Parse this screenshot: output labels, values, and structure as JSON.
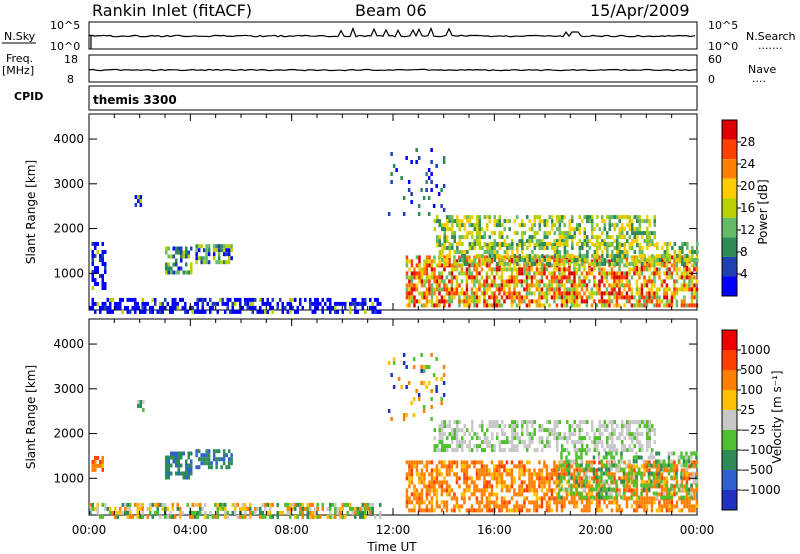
{
  "header": {
    "station": "Rankin Inlet (fitACF)",
    "beam": "Beam 06",
    "date": "15/Apr/2009"
  },
  "strip_labels": {
    "nsky": "N.Sky",
    "nsky_top": "10^5",
    "nsky_bottom": "10^0",
    "nsearch": "N.Search",
    "nsearch_top": "10^5",
    "nsearch_bottom": "10^0",
    "freq_line1": "Freq.",
    "freq_line2": "[MHz]",
    "freq_top": "18",
    "freq_bottom": "8",
    "nave": "Nave",
    "nave_top": "60",
    "nave_bottom": "0",
    "cpid_label": "CPID",
    "cpid_value": "themis 3300"
  },
  "chart_data": [
    {
      "type": "heatmap",
      "title": "",
      "ylabel": "Slant Range [km]",
      "xlabel": "",
      "x_tick_labels": [
        "00:00",
        "04:00",
        "08:00",
        "12:00",
        "16:00",
        "20:00",
        "00:00"
      ],
      "y_tick_labels": [
        "1000",
        "2000",
        "3000",
        "4000"
      ],
      "xlim_hours": [
        0,
        24
      ],
      "ylim_km": [
        180,
        4560
      ],
      "colorbar": {
        "label": "Power [dB]",
        "tick_labels": [
          "4",
          "8",
          "12",
          "16",
          "20",
          "24",
          "28"
        ],
        "range": [
          0,
          32
        ],
        "colors": [
          "#0000ff",
          "#2040b0",
          "#2e8b57",
          "#66bb66",
          "#b8d000",
          "#ffcc00",
          "#ff8000",
          "#ff4000",
          "#dd0000"
        ]
      },
      "regions": [
        {
          "x": [
            0.1,
            0.6
          ],
          "y": [
            700,
            1700
          ],
          "level": "low"
        },
        {
          "x": [
            1.8,
            2.1
          ],
          "y": [
            2500,
            2750
          ],
          "level": "low"
        },
        {
          "x": [
            3.0,
            4.0
          ],
          "y": [
            1000,
            1600
          ],
          "level": "mixed"
        },
        {
          "x": [
            4.2,
            5.6
          ],
          "y": [
            1250,
            1650
          ],
          "level": "mixed"
        },
        {
          "x": [
            0.0,
            11.5
          ],
          "y": [
            180,
            450
          ],
          "level": "low"
        },
        {
          "x": [
            12.5,
            24.0
          ],
          "y": [
            300,
            1400
          ],
          "level": "high"
        },
        {
          "x": [
            13.6,
            22.3
          ],
          "y": [
            1650,
            2300
          ],
          "level": "mid"
        },
        {
          "x": [
            13.8,
            24.0
          ],
          "y": [
            1200,
            1700
          ],
          "level": "mid"
        },
        {
          "x": [
            11.8,
            14.0
          ],
          "y": [
            2300,
            3800
          ],
          "level": "sparse"
        }
      ]
    },
    {
      "type": "heatmap",
      "title": "",
      "ylabel": "Slant Range [km]",
      "xlabel": "Time UT",
      "x_tick_labels": [
        "00:00",
        "04:00",
        "08:00",
        "12:00",
        "16:00",
        "20:00",
        "00:00"
      ],
      "y_tick_labels": [
        "1000",
        "2000",
        "3000",
        "4000"
      ],
      "xlim_hours": [
        0,
        24
      ],
      "ylim_km": [
        180,
        4560
      ],
      "colorbar": {
        "label": "Velocity [m s⁻¹]",
        "tick_labels": [
          "1000",
          "500",
          "100",
          "25",
          "−25",
          "−100",
          "−500",
          "−1000"
        ],
        "colors": [
          "#2030c0",
          "#3060d0",
          "#2e8b57",
          "#50c030",
          "#c8c8c8",
          "#ffc000",
          "#ff8000",
          "#ff4000",
          "#ee0000"
        ]
      },
      "regions": [
        {
          "x": [
            0.1,
            0.5
          ],
          "y": [
            1200,
            1500
          ],
          "level": "orange"
        },
        {
          "x": [
            1.8,
            2.1
          ],
          "y": [
            2500,
            2750
          ],
          "level": "green"
        },
        {
          "x": [
            3.0,
            4.0
          ],
          "y": [
            1000,
            1600
          ],
          "level": "teal"
        },
        {
          "x": [
            4.2,
            5.6
          ],
          "y": [
            1250,
            1650
          ],
          "level": "teal"
        },
        {
          "x": [
            0.0,
            11.5
          ],
          "y": [
            180,
            450
          ],
          "level": "mixed"
        },
        {
          "x": [
            12.5,
            24.0
          ],
          "y": [
            300,
            1400
          ],
          "level": "orange"
        },
        {
          "x": [
            13.6,
            22.3
          ],
          "y": [
            1650,
            2300
          ],
          "level": "grey"
        },
        {
          "x": [
            18.5,
            24.0
          ],
          "y": [
            600,
            1600
          ],
          "level": "green"
        },
        {
          "x": [
            11.8,
            14.0
          ],
          "y": [
            2300,
            3800
          ],
          "level": "sparse"
        }
      ]
    }
  ]
}
